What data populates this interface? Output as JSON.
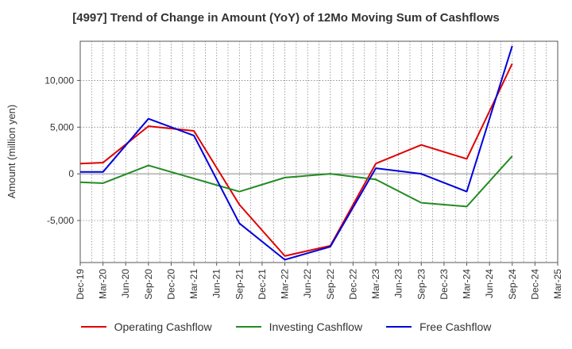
{
  "chart_data": {
    "type": "line",
    "title": "[4997]  Trend of Change in Amount (YoY) of 12Mo Moving Sum of Cashflows",
    "xlabel": "",
    "ylabel": "Amount (million yen)",
    "ylim": [
      -9500,
      14200
    ],
    "yticks": [
      -5000,
      0,
      5000,
      10000
    ],
    "ytick_labels": [
      "-5,000",
      "0",
      "5,000",
      "10,000"
    ],
    "categories": [
      "Dec-19",
      "Mar-20",
      "Jun-20",
      "Sep-20",
      "Dec-20",
      "Mar-21",
      "Jun-21",
      "Sep-21",
      "Dec-21",
      "Mar-22",
      "Jun-22",
      "Sep-22",
      "Dec-22",
      "Mar-23",
      "Jun-23",
      "Sep-23",
      "Dec-23",
      "Mar-24",
      "Jun-24",
      "Sep-24",
      "Dec-24",
      "Mar-25"
    ],
    "series": [
      {
        "name": "Operating Cashflow",
        "color": "#e00000",
        "values": [
          1100,
          1200,
          null,
          5100,
          null,
          4600,
          null,
          -3300,
          null,
          -8800,
          null,
          -7700,
          null,
          1100,
          null,
          3100,
          null,
          1600,
          null,
          11800,
          null,
          null
        ]
      },
      {
        "name": "Investing Cashflow",
        "color": "#228b22",
        "values": [
          -900,
          -1000,
          null,
          900,
          null,
          -500,
          null,
          -1900,
          null,
          -400,
          null,
          0,
          null,
          -600,
          null,
          -3100,
          null,
          -3500,
          null,
          1900,
          null,
          null
        ]
      },
      {
        "name": "Free Cashflow",
        "color": "#0000dd",
        "values": [
          200,
          200,
          null,
          5900,
          null,
          4100,
          null,
          -5300,
          null,
          -9200,
          null,
          -7800,
          null,
          600,
          null,
          0,
          null,
          -1900,
          null,
          13700,
          null,
          null
        ]
      }
    ],
    "grid": "dotted",
    "legend": "bottom"
  }
}
